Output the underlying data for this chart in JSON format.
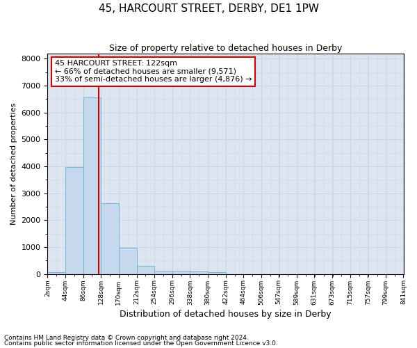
{
  "title": "45, HARCOURT STREET, DERBY, DE1 1PW",
  "subtitle": "Size of property relative to detached houses in Derby",
  "xlabel": "Distribution of detached houses by size in Derby",
  "ylabel": "Number of detached properties",
  "footnote1": "Contains HM Land Registry data © Crown copyright and database right 2024.",
  "footnote2": "Contains public sector information licensed under the Open Government Licence v3.0.",
  "bar_color": "#c5d8ee",
  "bar_edge_color": "#7aafd4",
  "grid_color": "#c8d4e8",
  "background_color": "#dde5f0",
  "vline_color": "#cc0000",
  "vline_x": 122,
  "bin_edges": [
    2,
    44,
    86,
    128,
    170,
    212,
    254,
    296,
    338,
    380,
    422,
    464,
    506,
    547,
    589,
    631,
    673,
    715,
    757,
    799,
    841
  ],
  "bar_heights": [
    70,
    3970,
    6570,
    2620,
    960,
    305,
    130,
    125,
    90,
    75,
    0,
    0,
    0,
    0,
    0,
    0,
    0,
    0,
    0,
    0
  ],
  "ylim": [
    0,
    8200
  ],
  "annotation_text": "45 HARCOURT STREET: 122sqm\n← 66% of detached houses are smaller (9,571)\n33% of semi-detached houses are larger (4,876) →",
  "annotation_box_color": "#ffffff",
  "annotation_box_edge": "#cc0000",
  "title_fontsize": 11,
  "subtitle_fontsize": 9,
  "ylabel_fontsize": 8,
  "xlabel_fontsize": 9,
  "footnote_fontsize": 6.5,
  "annotation_fontsize": 8
}
